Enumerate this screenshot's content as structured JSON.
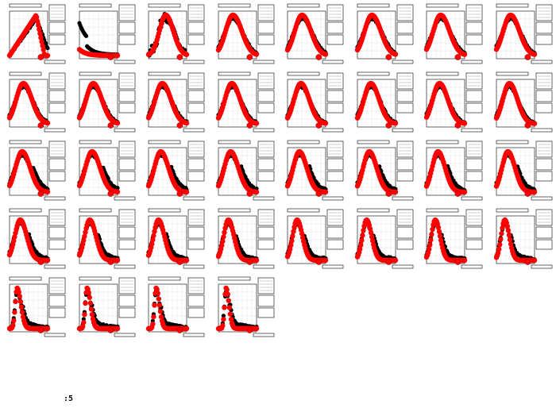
{
  "footer": {
    "label": ":5"
  },
  "colors": {
    "observed": "#000000",
    "model": "#ff0000",
    "frame": "#000000",
    "grid": "#808080"
  },
  "chart_data": {
    "type": "scatter",
    "layout": "small-multiples",
    "panel_count": 36,
    "columns": 8,
    "grid": true,
    "series": [
      {
        "key": "observed"
      },
      {
        "key": "model"
      }
    ],
    "panels": [
      {
        "kind": "triangle",
        "peak_x": 0.7,
        "width": 0.32
      },
      {
        "kind": "decay",
        "peak_x": 0.05,
        "width": 0.18
      },
      {
        "kind": "noisy",
        "peak_x": 0.45,
        "width": 0.26
      },
      {
        "kind": "bell",
        "peak_x": 0.38,
        "width": 0.3
      },
      {
        "kind": "bell",
        "peak_x": 0.38,
        "width": 0.3
      },
      {
        "kind": "bell",
        "peak_x": 0.38,
        "width": 0.3
      },
      {
        "kind": "bell",
        "peak_x": 0.37,
        "width": 0.3
      },
      {
        "kind": "bell",
        "peak_x": 0.37,
        "width": 0.3
      },
      {
        "kind": "bell",
        "peak_x": 0.36,
        "width": 0.29
      },
      {
        "kind": "bell",
        "peak_x": 0.36,
        "width": 0.29
      },
      {
        "kind": "bell",
        "peak_x": 0.36,
        "width": 0.29
      },
      {
        "kind": "bell",
        "peak_x": 0.35,
        "width": 0.28
      },
      {
        "kind": "bell",
        "peak_x": 0.35,
        "width": 0.28
      },
      {
        "kind": "bell",
        "peak_x": 0.35,
        "width": 0.28
      },
      {
        "kind": "bell",
        "peak_x": 0.34,
        "width": 0.28
      },
      {
        "kind": "bell",
        "peak_x": 0.34,
        "width": 0.27
      },
      {
        "kind": "bell",
        "peak_x": 0.33,
        "width": 0.27
      },
      {
        "kind": "bell",
        "peak_x": 0.33,
        "width": 0.27
      },
      {
        "kind": "bell",
        "peak_x": 0.32,
        "width": 0.26
      },
      {
        "kind": "bell",
        "peak_x": 0.32,
        "width": 0.26
      },
      {
        "kind": "bell",
        "peak_x": 0.31,
        "width": 0.25
      },
      {
        "kind": "bell",
        "peak_x": 0.31,
        "width": 0.25
      },
      {
        "kind": "bell",
        "peak_x": 0.3,
        "width": 0.24
      },
      {
        "kind": "bell",
        "peak_x": 0.3,
        "width": 0.24
      },
      {
        "kind": "bell",
        "peak_x": 0.28,
        "width": 0.22
      },
      {
        "kind": "bell",
        "peak_x": 0.27,
        "width": 0.21
      },
      {
        "kind": "bell",
        "peak_x": 0.26,
        "width": 0.2
      },
      {
        "kind": "bell",
        "peak_x": 0.26,
        "width": 0.19
      },
      {
        "kind": "bell",
        "peak_x": 0.25,
        "width": 0.18
      },
      {
        "kind": "bell",
        "peak_x": 0.24,
        "width": 0.17
      },
      {
        "kind": "bell",
        "peak_x": 0.23,
        "width": 0.16
      },
      {
        "kind": "bell",
        "peak_x": 0.22,
        "width": 0.15
      },
      {
        "kind": "spike",
        "peak_x": 0.2,
        "width": 0.14
      },
      {
        "kind": "spike",
        "peak_x": 0.2,
        "width": 0.13
      },
      {
        "kind": "spike",
        "peak_x": 0.2,
        "width": 0.12
      },
      {
        "kind": "spike",
        "peak_x": 0.2,
        "width": 0.11
      }
    ]
  }
}
